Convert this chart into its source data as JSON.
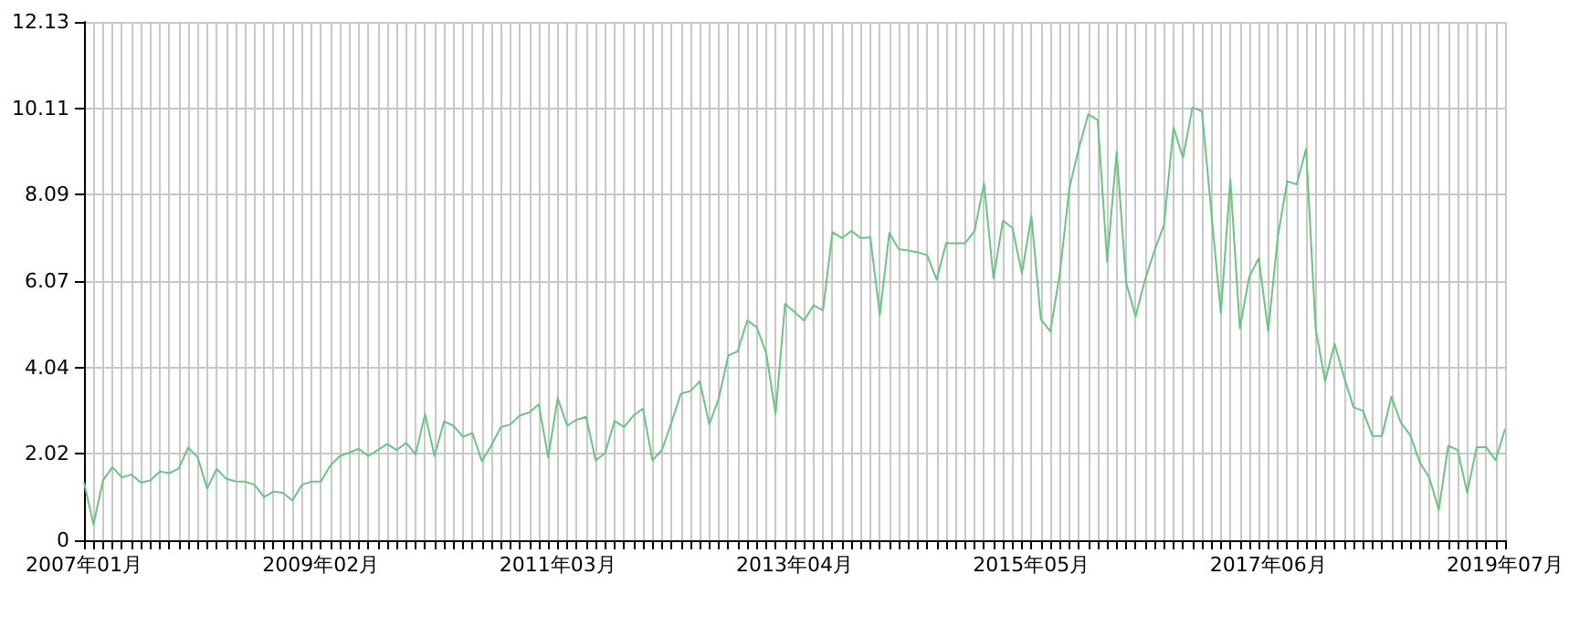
{
  "chart_data": {
    "type": "line",
    "categories": [
      "2007年01月",
      null,
      null,
      null,
      null,
      null,
      null,
      null,
      null,
      null,
      null,
      null,
      null,
      null,
      null,
      null,
      null,
      null,
      null,
      null,
      null,
      null,
      null,
      null,
      null,
      "2009年02月",
      null,
      null,
      null,
      null,
      null,
      null,
      null,
      null,
      null,
      null,
      null,
      null,
      null,
      null,
      null,
      null,
      null,
      null,
      null,
      null,
      null,
      null,
      null,
      null,
      "2011年03月",
      null,
      null,
      null,
      null,
      null,
      null,
      null,
      null,
      null,
      null,
      null,
      null,
      null,
      null,
      null,
      null,
      null,
      null,
      null,
      null,
      null,
      null,
      null,
      null,
      "2013年04月",
      null,
      null,
      null,
      null,
      null,
      null,
      null,
      null,
      null,
      null,
      null,
      null,
      null,
      null,
      null,
      null,
      null,
      null,
      null,
      null,
      null,
      null,
      null,
      null,
      "2015年05月",
      null,
      null,
      null,
      null,
      null,
      null,
      null,
      null,
      null,
      null,
      null,
      null,
      null,
      null,
      null,
      null,
      null,
      null,
      null,
      null,
      null,
      null,
      null,
      null,
      "2017年06月",
      null,
      null,
      null,
      null,
      null,
      null,
      null,
      null,
      null,
      null,
      null,
      null,
      null,
      null,
      null,
      null,
      null,
      null,
      null,
      null,
      null,
      null,
      null,
      null,
      "2019年07月"
    ],
    "series": [
      {
        "color": "#6cc481",
        "values": [
          1.35,
          0.37,
          1.4,
          1.71,
          1.47,
          1.54,
          1.35,
          1.4,
          1.61,
          1.57,
          1.68,
          2.17,
          1.94,
          1.21,
          1.67,
          1.44,
          1.38,
          1.37,
          1.3,
          1.01,
          1.14,
          1.11,
          0.93,
          1.3,
          1.37,
          1.37,
          1.75,
          1.97,
          2.05,
          2.14,
          1.97,
          2.11,
          2.25,
          2.11,
          2.28,
          2.01,
          2.95,
          1.97,
          2.78,
          2.68,
          2.42,
          2.51,
          1.85,
          2.22,
          2.65,
          2.71,
          2.92,
          2.99,
          3.18,
          1.94,
          3.33,
          2.68,
          2.82,
          2.89,
          1.87,
          2.04,
          2.79,
          2.65,
          2.92,
          3.08,
          1.87,
          2.11,
          2.75,
          3.43,
          3.49,
          3.72,
          2.71,
          3.32,
          4.32,
          4.42,
          5.14,
          4.99,
          4.39,
          2.96,
          5.53,
          5.34,
          5.14,
          5.5,
          5.38,
          7.21,
          7.07,
          7.24,
          7.07,
          7.09,
          5.27,
          7.19,
          6.81,
          6.78,
          6.74,
          6.67,
          6.1,
          6.95,
          6.95,
          6.95,
          7.24,
          8.35,
          6.13,
          7.48,
          7.31,
          6.24,
          7.59,
          5.17,
          4.89,
          6.24,
          8.23,
          9.16,
          9.97,
          9.83,
          6.52,
          9.09,
          6.03,
          5.24,
          6.1,
          6.78,
          7.38,
          9.66,
          8.95,
          10.13,
          10.04,
          7.66,
          5.31,
          8.45,
          4.96,
          6.17,
          6.6,
          4.89,
          7.09,
          8.4,
          8.33,
          9.16,
          4.96,
          3.72,
          4.6,
          3.82,
          3.11,
          3.03,
          2.44,
          2.44,
          3.36,
          2.75,
          2.46,
          1.82,
          1.47,
          0.71,
          2.21,
          2.11,
          1.11,
          2.18,
          2.18,
          1.87,
          2.61
        ]
      }
    ],
    "ylim": [
      0,
      12.13
    ],
    "yticks": [
      0,
      2.02,
      4.04,
      6.07,
      8.09,
      10.11,
      12.13
    ],
    "grid": true,
    "marker": "none"
  }
}
